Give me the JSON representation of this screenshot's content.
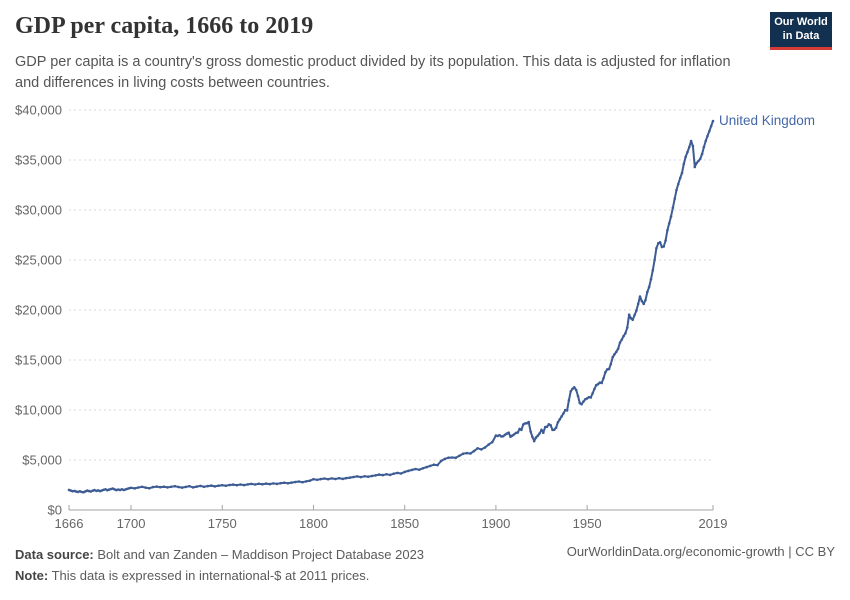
{
  "header": {
    "title": "GDP per capita, 1666 to 2019",
    "subtitle": "GDP per capita is a country's gross domestic product divided by its population. This data is adjusted for inflation and differences in living costs between countries.",
    "logo": {
      "line1": "Our World",
      "line2": "in Data",
      "bg_color": "#12304f",
      "accent_color": "#d73b36"
    }
  },
  "footer": {
    "data_source_label": "Data source:",
    "data_source_value": "Bolt and van Zanden – Maddison Project Database 2023",
    "note_label": "Note:",
    "note_value": "This data is expressed in international-$ at 2011 prices.",
    "link": "OurWorldinData.org/economic-growth | CC BY"
  },
  "colors": {
    "series": "#3d5c94",
    "series_label": "#4467a8",
    "gridline": "#d9d9d9",
    "axis": "#a3a3a3",
    "tick_label": "#666666"
  },
  "chart_data": {
    "type": "line",
    "title": "GDP per capita, 1666 to 2019",
    "xlabel": "",
    "ylabel": "",
    "xlim": [
      1666,
      2019
    ],
    "ylim": [
      0,
      40000
    ],
    "grid": "horizontal-dashed",
    "legend_position": "end-of-line-label",
    "x_ticks": [
      1666,
      1700,
      1750,
      1800,
      1850,
      1900,
      1950,
      2019
    ],
    "y_ticks": [
      0,
      5000,
      10000,
      15000,
      20000,
      25000,
      30000,
      35000,
      40000
    ],
    "y_tick_labels": [
      "$0",
      "$5,000",
      "$10,000",
      "$15,000",
      "$20,000",
      "$25,000",
      "$30,000",
      "$35,000",
      "$40,000"
    ],
    "series": [
      {
        "name": "United Kingdom",
        "color": "#3d5c94",
        "points": [
          [
            1666,
            2010
          ],
          [
            1667,
            1940
          ],
          [
            1668,
            1880
          ],
          [
            1669,
            1910
          ],
          [
            1670,
            1840
          ],
          [
            1671,
            1810
          ],
          [
            1672,
            1870
          ],
          [
            1673,
            1800
          ],
          [
            1674,
            1780
          ],
          [
            1675,
            1860
          ],
          [
            1676,
            1940
          ],
          [
            1677,
            1890
          ],
          [
            1678,
            1850
          ],
          [
            1679,
            1930
          ],
          [
            1680,
            1990
          ],
          [
            1681,
            1910
          ],
          [
            1682,
            1960
          ],
          [
            1683,
            1890
          ],
          [
            1684,
            1950
          ],
          [
            1685,
            2020
          ],
          [
            1686,
            2070
          ],
          [
            1687,
            1980
          ],
          [
            1688,
            2040
          ],
          [
            1689,
            2100
          ],
          [
            1690,
            2140
          ],
          [
            1691,
            2060
          ],
          [
            1692,
            1990
          ],
          [
            1693,
            2050
          ],
          [
            1694,
            2000
          ],
          [
            1695,
            2070
          ],
          [
            1696,
            2000
          ],
          [
            1697,
            2060
          ],
          [
            1698,
            2120
          ],
          [
            1699,
            2170
          ],
          [
            1700,
            2220
          ],
          [
            1702,
            2160
          ],
          [
            1704,
            2250
          ],
          [
            1706,
            2320
          ],
          [
            1708,
            2240
          ],
          [
            1710,
            2170
          ],
          [
            1712,
            2290
          ],
          [
            1714,
            2340
          ],
          [
            1716,
            2280
          ],
          [
            1718,
            2330
          ],
          [
            1720,
            2260
          ],
          [
            1722,
            2320
          ],
          [
            1724,
            2380
          ],
          [
            1726,
            2300
          ],
          [
            1728,
            2240
          ],
          [
            1730,
            2310
          ],
          [
            1732,
            2380
          ],
          [
            1734,
            2260
          ],
          [
            1736,
            2340
          ],
          [
            1738,
            2410
          ],
          [
            1740,
            2320
          ],
          [
            1742,
            2390
          ],
          [
            1744,
            2440
          ],
          [
            1746,
            2360
          ],
          [
            1748,
            2430
          ],
          [
            1750,
            2480
          ],
          [
            1752,
            2430
          ],
          [
            1754,
            2500
          ],
          [
            1756,
            2540
          ],
          [
            1758,
            2480
          ],
          [
            1760,
            2550
          ],
          [
            1762,
            2490
          ],
          [
            1764,
            2560
          ],
          [
            1766,
            2610
          ],
          [
            1768,
            2550
          ],
          [
            1770,
            2620
          ],
          [
            1772,
            2570
          ],
          [
            1774,
            2640
          ],
          [
            1776,
            2590
          ],
          [
            1778,
            2660
          ],
          [
            1780,
            2610
          ],
          [
            1782,
            2680
          ],
          [
            1784,
            2730
          ],
          [
            1786,
            2670
          ],
          [
            1788,
            2740
          ],
          [
            1790,
            2800
          ],
          [
            1792,
            2850
          ],
          [
            1794,
            2780
          ],
          [
            1796,
            2860
          ],
          [
            1798,
            2930
          ],
          [
            1800,
            3080
          ],
          [
            1802,
            3020
          ],
          [
            1804,
            3090
          ],
          [
            1806,
            3150
          ],
          [
            1808,
            3080
          ],
          [
            1810,
            3160
          ],
          [
            1812,
            3100
          ],
          [
            1814,
            3180
          ],
          [
            1816,
            3110
          ],
          [
            1818,
            3190
          ],
          [
            1820,
            3240
          ],
          [
            1822,
            3300
          ],
          [
            1824,
            3360
          ],
          [
            1826,
            3290
          ],
          [
            1828,
            3370
          ],
          [
            1830,
            3330
          ],
          [
            1832,
            3400
          ],
          [
            1834,
            3460
          ],
          [
            1836,
            3540
          ],
          [
            1838,
            3490
          ],
          [
            1840,
            3570
          ],
          [
            1842,
            3510
          ],
          [
            1844,
            3630
          ],
          [
            1846,
            3710
          ],
          [
            1848,
            3650
          ],
          [
            1850,
            3810
          ],
          [
            1852,
            3910
          ],
          [
            1854,
            4010
          ],
          [
            1856,
            4100
          ],
          [
            1858,
            4030
          ],
          [
            1860,
            4170
          ],
          [
            1862,
            4290
          ],
          [
            1864,
            4410
          ],
          [
            1866,
            4530
          ],
          [
            1868,
            4490
          ],
          [
            1870,
            4910
          ],
          [
            1872,
            5110
          ],
          [
            1874,
            5230
          ],
          [
            1876,
            5250
          ],
          [
            1878,
            5220
          ],
          [
            1880,
            5420
          ],
          [
            1882,
            5630
          ],
          [
            1884,
            5690
          ],
          [
            1886,
            5650
          ],
          [
            1888,
            5890
          ],
          [
            1890,
            6170
          ],
          [
            1892,
            6060
          ],
          [
            1894,
            6250
          ],
          [
            1896,
            6540
          ],
          [
            1898,
            6790
          ],
          [
            1900,
            7450
          ],
          [
            1901,
            7400
          ],
          [
            1902,
            7480
          ],
          [
            1903,
            7350
          ],
          [
            1904,
            7380
          ],
          [
            1905,
            7520
          ],
          [
            1906,
            7640
          ],
          [
            1907,
            7730
          ],
          [
            1908,
            7320
          ],
          [
            1909,
            7440
          ],
          [
            1910,
            7560
          ],
          [
            1911,
            7710
          ],
          [
            1912,
            7750
          ],
          [
            1913,
            8110
          ],
          [
            1914,
            8010
          ],
          [
            1915,
            8560
          ],
          [
            1916,
            8660
          ],
          [
            1917,
            8680
          ],
          [
            1918,
            8790
          ],
          [
            1919,
            7850
          ],
          [
            1920,
            7310
          ],
          [
            1921,
            6890
          ],
          [
            1922,
            7240
          ],
          [
            1923,
            7440
          ],
          [
            1924,
            7670
          ],
          [
            1925,
            8020
          ],
          [
            1926,
            7730
          ],
          [
            1927,
            8290
          ],
          [
            1928,
            8330
          ],
          [
            1929,
            8570
          ],
          [
            1930,
            8480
          ],
          [
            1931,
            8010
          ],
          [
            1932,
            8030
          ],
          [
            1933,
            8230
          ],
          [
            1934,
            8770
          ],
          [
            1935,
            9070
          ],
          [
            1936,
            9360
          ],
          [
            1937,
            9650
          ],
          [
            1938,
            9980
          ],
          [
            1939,
            9960
          ],
          [
            1940,
            10970
          ],
          [
            1941,
            11860
          ],
          [
            1942,
            12120
          ],
          [
            1943,
            12270
          ],
          [
            1944,
            12000
          ],
          [
            1945,
            11400
          ],
          [
            1946,
            10690
          ],
          [
            1947,
            10580
          ],
          [
            1948,
            10850
          ],
          [
            1949,
            11070
          ],
          [
            1950,
            11160
          ],
          [
            1951,
            11280
          ],
          [
            1952,
            11250
          ],
          [
            1953,
            11660
          ],
          [
            1954,
            12100
          ],
          [
            1955,
            12480
          ],
          [
            1956,
            12590
          ],
          [
            1957,
            12740
          ],
          [
            1958,
            12700
          ],
          [
            1959,
            13170
          ],
          [
            1960,
            13780
          ],
          [
            1961,
            14060
          ],
          [
            1962,
            14090
          ],
          [
            1963,
            14580
          ],
          [
            1964,
            15280
          ],
          [
            1965,
            15570
          ],
          [
            1966,
            15810
          ],
          [
            1967,
            16120
          ],
          [
            1968,
            16750
          ],
          [
            1969,
            17040
          ],
          [
            1970,
            17390
          ],
          [
            1971,
            17670
          ],
          [
            1972,
            18250
          ],
          [
            1973,
            19530
          ],
          [
            1974,
            19180
          ],
          [
            1975,
            19020
          ],
          [
            1976,
            19500
          ],
          [
            1977,
            19940
          ],
          [
            1978,
            20610
          ],
          [
            1979,
            21350
          ],
          [
            1980,
            20900
          ],
          [
            1981,
            20610
          ],
          [
            1982,
            21000
          ],
          [
            1983,
            21790
          ],
          [
            1984,
            22290
          ],
          [
            1985,
            23080
          ],
          [
            1986,
            23970
          ],
          [
            1987,
            25010
          ],
          [
            1988,
            26180
          ],
          [
            1989,
            26670
          ],
          [
            1990,
            26770
          ],
          [
            1991,
            26300
          ],
          [
            1992,
            26350
          ],
          [
            1993,
            26940
          ],
          [
            1994,
            27980
          ],
          [
            1995,
            28660
          ],
          [
            1996,
            29340
          ],
          [
            1997,
            30230
          ],
          [
            1998,
            31120
          ],
          [
            1999,
            32000
          ],
          [
            2000,
            32600
          ],
          [
            2001,
            33200
          ],
          [
            2002,
            33700
          ],
          [
            2003,
            34600
          ],
          [
            2004,
            35300
          ],
          [
            2005,
            35800
          ],
          [
            2006,
            36300
          ],
          [
            2007,
            36900
          ],
          [
            2008,
            36400
          ],
          [
            2009,
            34300
          ],
          [
            2010,
            34700
          ],
          [
            2011,
            34900
          ],
          [
            2012,
            35100
          ],
          [
            2013,
            35600
          ],
          [
            2014,
            36300
          ],
          [
            2015,
            36900
          ],
          [
            2016,
            37400
          ],
          [
            2017,
            37900
          ],
          [
            2018,
            38400
          ],
          [
            2019,
            38900
          ]
        ]
      }
    ]
  }
}
